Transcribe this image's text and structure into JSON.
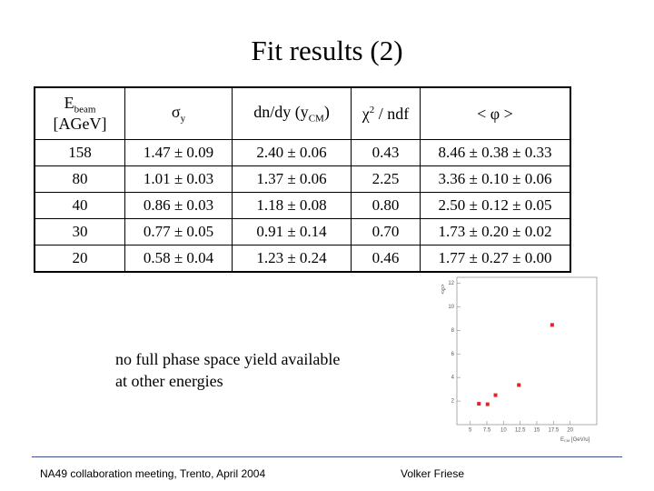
{
  "title": "Fit results (2)",
  "table": {
    "header": [
      {
        "main": "E",
        "sub": "beam",
        "line2": "[AGeV]"
      },
      {
        "main": "σ",
        "sub": "y"
      },
      {
        "main": "dn/dy (y",
        "sub": "CM",
        "tail": ")"
      },
      {
        "main": "χ",
        "sup": "2",
        "tail": " / ndf"
      },
      {
        "main": "< φ >"
      }
    ],
    "rows": [
      [
        "158",
        "1.47 ± 0.09",
        "2.40 ± 0.06",
        "0.43",
        "8.46 ± 0.38 ± 0.33"
      ],
      [
        "80",
        "1.01 ± 0.03",
        "1.37 ± 0.06",
        "2.25",
        "3.36 ± 0.10 ± 0.06"
      ],
      [
        "40",
        "0.86 ± 0.03",
        "1.18 ± 0.08",
        "0.80",
        "2.50 ± 0.12 ± 0.05"
      ],
      [
        "30",
        "0.77 ± 0.05",
        "0.91 ± 0.14",
        "0.70",
        "1.73 ± 0.20 ± 0.02"
      ],
      [
        "20",
        "0.58 ± 0.04",
        "1.23 ± 0.24",
        "0.46",
        "1.77 ± 0.27 ± 0.00"
      ]
    ]
  },
  "chart": {
    "type": "scatter",
    "color": "#e8202a",
    "x": [
      17.3,
      12.3,
      8.8,
      7.6,
      6.3
    ],
    "values": [
      8.46,
      3.36,
      2.5,
      1.73,
      1.77
    ],
    "xlim": [
      3,
      24
    ],
    "ylim": [
      0,
      12.5
    ],
    "xticks": [
      5,
      7.5,
      10,
      12.5,
      15,
      17.5,
      20
    ],
    "yticks": [
      2,
      4,
      6,
      8,
      10,
      12
    ],
    "xlabel": {
      "main": "E",
      "sub": "CM",
      "tail": " [GeV/u]"
    },
    "ylabel": "<φ>"
  },
  "note": [
    "no full phase space yield available",
    "at other energies"
  ],
  "footer": {
    "left": "NA49 collaboration meeting, Trento, April 2004",
    "right": "Volker Friese"
  }
}
